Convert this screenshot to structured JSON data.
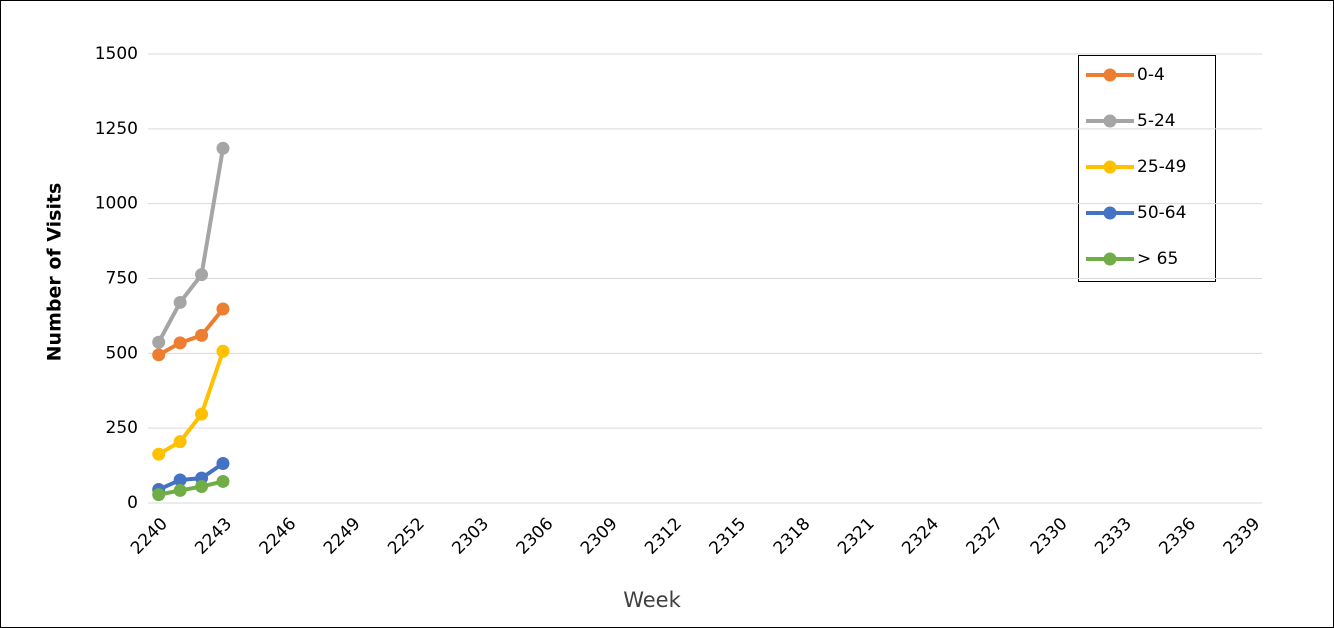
{
  "chart_data": {
    "type": "line",
    "x_label": "Week",
    "y_label": "Number of Visits",
    "categories": [
      "2240",
      null,
      null,
      "2243",
      null,
      null,
      "2246",
      null,
      null,
      "2249",
      null,
      null,
      "2252",
      null,
      null,
      "2303",
      null,
      null,
      "2306",
      null,
      null,
      "2309",
      null,
      null,
      "2312",
      null,
      null,
      "2315",
      null,
      null,
      "2318",
      null,
      null,
      "2321",
      null,
      null,
      "2324",
      null,
      null,
      "2327",
      null,
      null,
      "2330",
      null,
      null,
      "2333",
      null,
      null,
      "2336",
      null,
      null,
      "2339"
    ],
    "series": [
      {
        "name": "0-4",
        "color": "#ed7d31",
        "values": [
          495,
          535,
          560,
          648,
          null,
          null,
          null,
          null,
          null,
          null,
          null,
          null,
          null,
          null,
          null,
          null,
          null,
          null,
          null,
          null,
          null,
          null,
          null,
          null,
          null,
          null,
          null,
          null,
          null,
          null,
          null,
          null,
          null,
          null,
          null,
          null,
          null,
          null,
          null,
          null,
          null,
          null,
          null,
          null,
          null,
          null,
          null,
          null,
          null,
          null,
          null,
          null
        ]
      },
      {
        "name": "5-24",
        "color": "#a5a5a5",
        "values": [
          537,
          670,
          763,
          1185,
          null,
          null,
          null,
          null,
          null,
          null,
          null,
          null,
          null,
          null,
          null,
          null,
          null,
          null,
          null,
          null,
          null,
          null,
          null,
          null,
          null,
          null,
          null,
          null,
          null,
          null,
          null,
          null,
          null,
          null,
          null,
          null,
          null,
          null,
          null,
          null,
          null,
          null,
          null,
          null,
          null,
          null,
          null,
          null,
          null,
          null,
          null,
          null
        ]
      },
      {
        "name": "25-49",
        "color": "#ffc000",
        "values": [
          163,
          205,
          297,
          507,
          null,
          null,
          null,
          null,
          null,
          null,
          null,
          null,
          null,
          null,
          null,
          null,
          null,
          null,
          null,
          null,
          null,
          null,
          null,
          null,
          null,
          null,
          null,
          null,
          null,
          null,
          null,
          null,
          null,
          null,
          null,
          null,
          null,
          null,
          null,
          null,
          null,
          null,
          null,
          null,
          null,
          null,
          null,
          null,
          null,
          null,
          null,
          null
        ]
      },
      {
        "name": "50-64",
        "color": "#4472c4",
        "values": [
          45,
          77,
          83,
          132,
          null,
          null,
          null,
          null,
          null,
          null,
          null,
          null,
          null,
          null,
          null,
          null,
          null,
          null,
          null,
          null,
          null,
          null,
          null,
          null,
          null,
          null,
          null,
          null,
          null,
          null,
          null,
          null,
          null,
          null,
          null,
          null,
          null,
          null,
          null,
          null,
          null,
          null,
          null,
          null,
          null,
          null,
          null,
          null,
          null,
          null,
          null,
          null
        ]
      },
      {
        "name": "> 65",
        "color": "#70ad47",
        "values": [
          28,
          42,
          55,
          72,
          null,
          null,
          null,
          null,
          null,
          null,
          null,
          null,
          null,
          null,
          null,
          null,
          null,
          null,
          null,
          null,
          null,
          null,
          null,
          null,
          null,
          null,
          null,
          null,
          null,
          null,
          null,
          null,
          null,
          null,
          null,
          null,
          null,
          null,
          null,
          null,
          null,
          null,
          null,
          null,
          null,
          null,
          null,
          null,
          null,
          null,
          null,
          null
        ]
      }
    ],
    "ylim": [
      0,
      1500
    ],
    "yticks": [
      0,
      250,
      500,
      750,
      1000,
      1250,
      1500
    ],
    "grid": true,
    "legend": "top-right"
  }
}
